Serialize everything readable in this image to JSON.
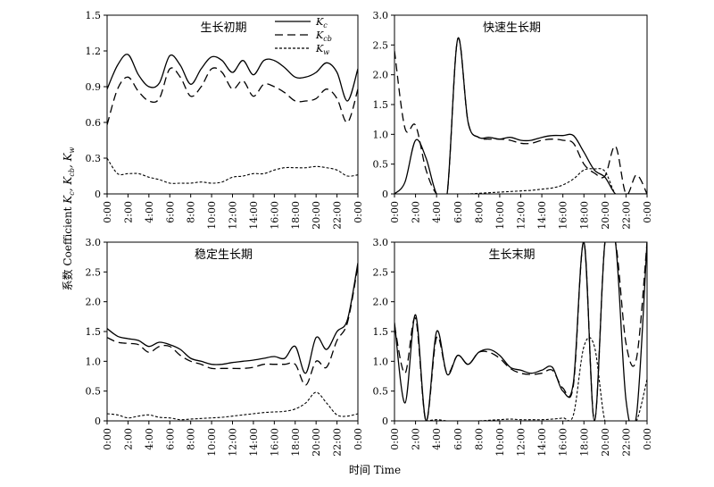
{
  "figure": {
    "ylabel": "系数 Coefficient K_c, K_cb, K_w",
    "ylabel_main": "系数 Coefficient ",
    "ylabel_vars": [
      "K",
      "c",
      ", K",
      "cb",
      ", K",
      "w"
    ],
    "xlabel": "时间 Time",
    "legend": [
      {
        "key": "Kc",
        "base": "K",
        "sub": "c",
        "dash": "solid"
      },
      {
        "key": "Kcb",
        "base": "K",
        "sub": "cb",
        "dash": "long-dash"
      },
      {
        "key": "Kw",
        "base": "K",
        "sub": "w",
        "dash": "short-dash"
      }
    ]
  },
  "chart_data": [
    {
      "type": "line",
      "title": "生长初期",
      "x": [
        "0:00",
        "1:00",
        "2:00",
        "3:00",
        "4:00",
        "5:00",
        "6:00",
        "7:00",
        "8:00",
        "9:00",
        "10:00",
        "11:00",
        "12:00",
        "13:00",
        "14:00",
        "15:00",
        "16:00",
        "17:00",
        "18:00",
        "19:00",
        "20:00",
        "21:00",
        "22:00",
        "23:00",
        "0:00"
      ],
      "x_tick_labels": [
        "0:00",
        "2:00",
        "4:00",
        "6:00",
        "8:00",
        "10:00",
        "12:00",
        "14:00",
        "16:00",
        "18:00",
        "20:00",
        "22:00",
        "0:00"
      ],
      "ylim": [
        0,
        1.5
      ],
      "y_ticks": [
        "0",
        "0.3",
        "0.6",
        "0.9",
        "1.2",
        "1.5"
      ],
      "series": [
        {
          "name": "Kc",
          "values": [
            0.88,
            1.08,
            1.17,
            1.0,
            0.9,
            0.93,
            1.16,
            1.08,
            0.92,
            1.05,
            1.15,
            1.12,
            1.02,
            1.12,
            1.0,
            1.12,
            1.12,
            1.06,
            0.98,
            0.98,
            1.02,
            1.1,
            1.02,
            0.78,
            1.05
          ]
        },
        {
          "name": "Kcb",
          "values": [
            0.58,
            0.88,
            0.98,
            0.86,
            0.78,
            0.8,
            1.05,
            0.98,
            0.82,
            0.9,
            1.05,
            1.02,
            0.88,
            0.95,
            0.82,
            0.92,
            0.9,
            0.85,
            0.78,
            0.78,
            0.8,
            0.88,
            0.8,
            0.6,
            0.88
          ]
        },
        {
          "name": "Kw",
          "values": [
            0.3,
            0.17,
            0.17,
            0.17,
            0.14,
            0.12,
            0.09,
            0.09,
            0.09,
            0.1,
            0.09,
            0.1,
            0.14,
            0.15,
            0.17,
            0.17,
            0.2,
            0.22,
            0.22,
            0.22,
            0.23,
            0.22,
            0.2,
            0.15,
            0.16
          ]
        }
      ]
    },
    {
      "type": "line",
      "title": "快速生长期",
      "x": [
        "0:00",
        "1:00",
        "2:00",
        "3:00",
        "4:00",
        "5:00",
        "6:00",
        "7:00",
        "8:00",
        "9:00",
        "10:00",
        "11:00",
        "12:00",
        "13:00",
        "14:00",
        "15:00",
        "16:00",
        "17:00",
        "18:00",
        "19:00",
        "20:00",
        "21:00",
        "22:00",
        "23:00",
        "0:00"
      ],
      "x_tick_labels": [
        "0:00",
        "2:00",
        "4:00",
        "6:00",
        "8:00",
        "10:00",
        "12:00",
        "14:00",
        "16:00",
        "18:00",
        "20:00",
        "22:00",
        "0:00"
      ],
      "ylim": [
        0,
        3.0
      ],
      "y_ticks": [
        "0",
        "0.5",
        "1.0",
        "1.5",
        "2.0",
        "2.5",
        "3.0"
      ],
      "series": [
        {
          "name": "Kc",
          "values": [
            0.0,
            0.2,
            0.9,
            0.6,
            0.0,
            0.0,
            2.6,
            1.2,
            0.95,
            0.95,
            0.92,
            0.95,
            0.9,
            0.9,
            0.95,
            0.98,
            0.98,
            0.98,
            0.7,
            0.4,
            0.28,
            0.0,
            0.0,
            0.0,
            0.0
          ]
        },
        {
          "name": "Kcb",
          "values": [
            2.4,
            1.1,
            1.15,
            0.4,
            0.0,
            0.0,
            2.6,
            1.2,
            0.95,
            0.92,
            0.92,
            0.9,
            0.85,
            0.85,
            0.9,
            0.92,
            0.9,
            0.85,
            0.5,
            0.35,
            0.3,
            0.8,
            0.0,
            0.32,
            0.0
          ]
        },
        {
          "name": "Kw",
          "values": [
            0.0,
            0.0,
            0.0,
            0.0,
            0.0,
            0.0,
            0.0,
            0.0,
            0.01,
            0.02,
            0.03,
            0.04,
            0.05,
            0.06,
            0.08,
            0.1,
            0.15,
            0.25,
            0.4,
            0.42,
            0.38,
            0.0,
            0.0,
            0.0,
            0.0
          ]
        }
      ]
    },
    {
      "type": "line",
      "title": "稳定生长期",
      "x": [
        "0:00",
        "1:00",
        "2:00",
        "3:00",
        "4:00",
        "5:00",
        "6:00",
        "7:00",
        "8:00",
        "9:00",
        "10:00",
        "11:00",
        "12:00",
        "13:00",
        "14:00",
        "15:00",
        "16:00",
        "17:00",
        "18:00",
        "19:00",
        "20:00",
        "21:00",
        "22:00",
        "23:00",
        "0:00"
      ],
      "x_tick_labels": [
        "0:00",
        "2:00",
        "4:00",
        "6:00",
        "8:00",
        "10:00",
        "12:00",
        "14:00",
        "16:00",
        "18:00",
        "20:00",
        "22:00",
        "0:00"
      ],
      "ylim": [
        0,
        3.0
      ],
      "y_ticks": [
        "0",
        "0.5",
        "1.0",
        "1.5",
        "2.0",
        "2.5",
        "3.0"
      ],
      "series": [
        {
          "name": "Kc",
          "values": [
            1.55,
            1.42,
            1.38,
            1.35,
            1.25,
            1.32,
            1.28,
            1.2,
            1.05,
            1.0,
            0.95,
            0.95,
            0.98,
            1.0,
            1.02,
            1.05,
            1.08,
            1.05,
            1.25,
            0.8,
            1.4,
            1.2,
            1.5,
            1.7,
            2.65
          ]
        },
        {
          "name": "Kcb",
          "values": [
            1.4,
            1.32,
            1.3,
            1.28,
            1.15,
            1.25,
            1.25,
            1.1,
            1.0,
            0.95,
            0.88,
            0.88,
            0.88,
            0.88,
            0.9,
            0.95,
            0.95,
            0.95,
            0.95,
            0.6,
            1.0,
            0.9,
            1.35,
            1.65,
            2.6
          ]
        },
        {
          "name": "Kw",
          "values": [
            0.12,
            0.1,
            0.05,
            0.08,
            0.1,
            0.06,
            0.05,
            0.02,
            0.03,
            0.04,
            0.05,
            0.06,
            0.08,
            0.1,
            0.12,
            0.14,
            0.15,
            0.16,
            0.2,
            0.3,
            0.48,
            0.3,
            0.1,
            0.08,
            0.12
          ]
        }
      ]
    },
    {
      "type": "line",
      "title": "生长末期",
      "x": [
        "0:00",
        "1:00",
        "2:00",
        "3:00",
        "4:00",
        "5:00",
        "6:00",
        "7:00",
        "8:00",
        "9:00",
        "10:00",
        "11:00",
        "12:00",
        "13:00",
        "14:00",
        "15:00",
        "16:00",
        "17:00",
        "18:00",
        "19:00",
        "20:00",
        "21:00",
        "22:00",
        "23:00",
        "0:00"
      ],
      "x_tick_labels": [
        "0:00",
        "2:00",
        "4:00",
        "6:00",
        "8:00",
        "10:00",
        "12:00",
        "14:00",
        "16:00",
        "18:00",
        "20:00",
        "22:00",
        "0:00"
      ],
      "ylim": [
        0,
        3.0
      ],
      "y_ticks": [
        "0",
        "0.5",
        "1.0",
        "1.5",
        "2.0",
        "2.5",
        "3.0"
      ],
      "series": [
        {
          "name": "Kc",
          "values": [
            1.65,
            0.3,
            1.78,
            0.0,
            1.5,
            0.78,
            1.1,
            0.95,
            1.15,
            1.2,
            1.1,
            0.9,
            0.85,
            0.8,
            0.85,
            0.9,
            0.5,
            0.65,
            3.0,
            0.0,
            3.0,
            3.0,
            0.35,
            0.1,
            3.0
          ]
        },
        {
          "name": "Kcb",
          "values": [
            1.6,
            0.8,
            1.72,
            0.0,
            1.4,
            0.8,
            1.1,
            0.95,
            1.15,
            1.15,
            1.05,
            0.88,
            0.8,
            0.78,
            0.8,
            0.85,
            0.55,
            0.6,
            3.0,
            0.0,
            3.0,
            3.0,
            1.3,
            1.05,
            3.0
          ]
        },
        {
          "name": "Kw",
          "values": [
            0.0,
            0.0,
            0.0,
            0.0,
            0.02,
            0.0,
            0.0,
            0.0,
            0.0,
            0.01,
            0.02,
            0.03,
            0.02,
            0.02,
            0.02,
            0.03,
            0.05,
            0.1,
            1.25,
            1.25,
            0.0,
            0.0,
            0.0,
            0.0,
            0.7
          ]
        }
      ]
    }
  ]
}
